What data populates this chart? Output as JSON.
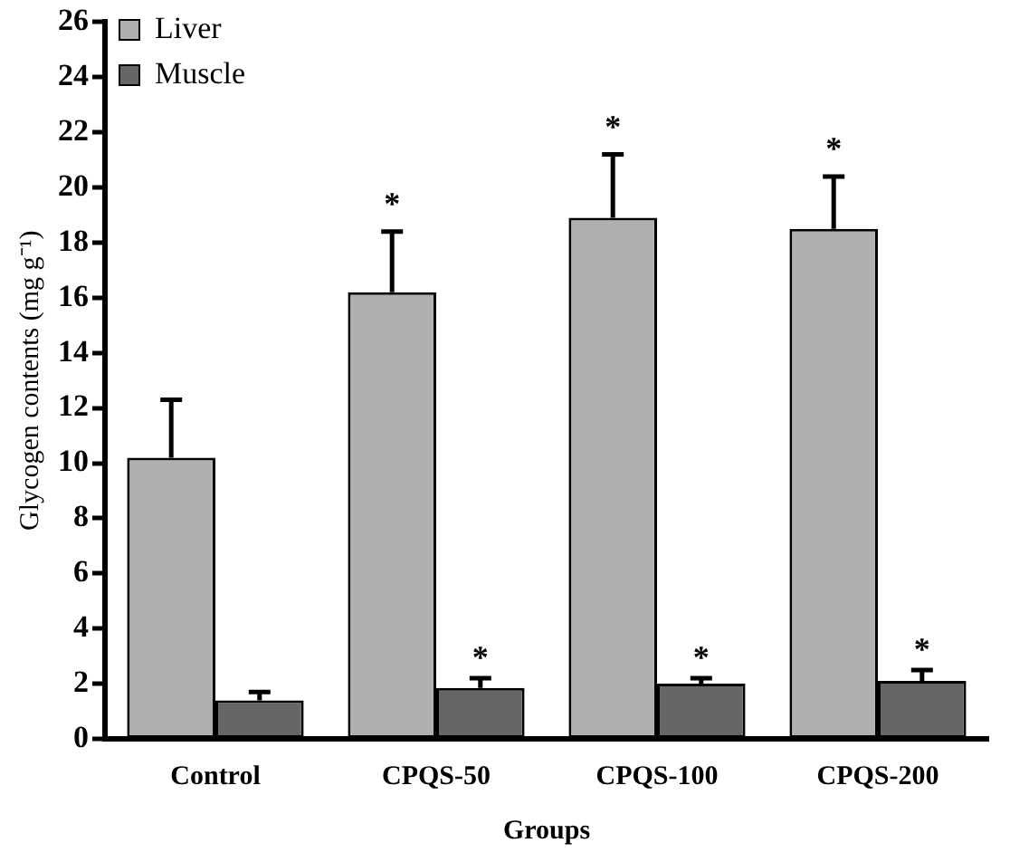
{
  "chart_data": {
    "type": "bar",
    "xlabel": "Groups",
    "ylabel": "Glycogen contents (mg g⁻¹)",
    "categories": [
      "Control",
      "CPQS-50",
      "CPQS-100",
      "CPQS-200"
    ],
    "series": [
      {
        "name": "Liver",
        "color": "#b0b0b0",
        "values": [
          10.2,
          16.2,
          18.9,
          18.5
        ],
        "errors": [
          [
            10.2,
            12.3
          ],
          [
            16.2,
            18.4
          ],
          [
            18.9,
            21.2
          ],
          [
            18.5,
            20.4
          ]
        ],
        "value_labels": [
          null,
          "*",
          "*",
          "*"
        ]
      },
      {
        "name": "Muscle",
        "color": "#666666",
        "values": [
          1.4,
          1.85,
          2.0,
          2.1
        ],
        "errors": [
          [
            1.4,
            1.7
          ],
          [
            1.85,
            2.2
          ],
          [
            2.0,
            2.2
          ],
          [
            2.1,
            2.5
          ]
        ],
        "value_labels": [
          null,
          "*",
          "*",
          "*"
        ]
      }
    ],
    "ylim": [
      0,
      26
    ],
    "yticks": [
      0,
      2,
      4,
      6,
      8,
      10,
      12,
      14,
      16,
      18,
      20,
      22,
      24,
      26
    ],
    "grid": false,
    "legend": "top left"
  }
}
